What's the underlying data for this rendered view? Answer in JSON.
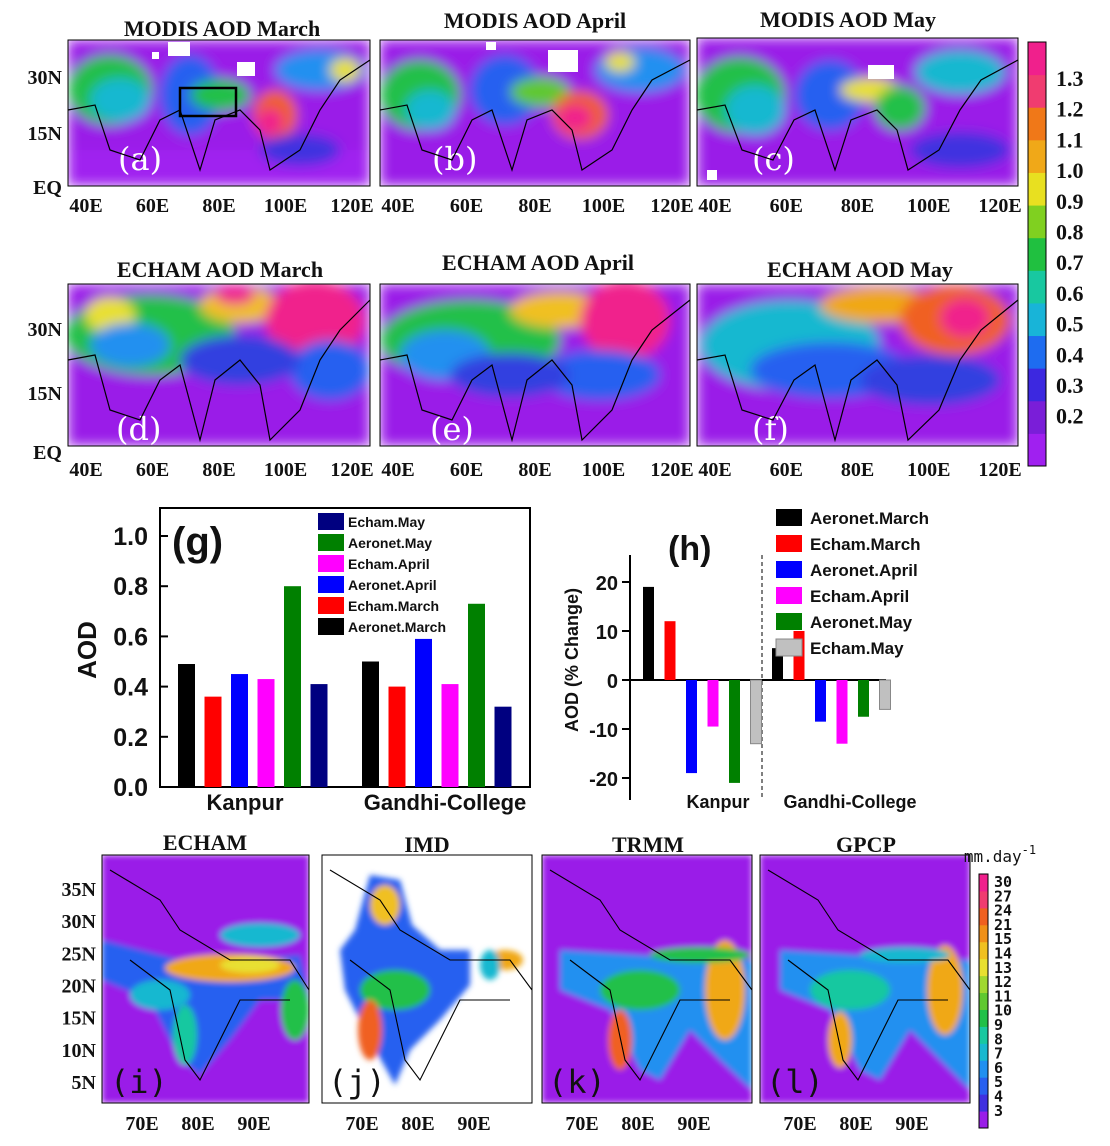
{
  "colors": {
    "aod_scale": [
      "#a020f0",
      "#7a1ed8",
      "#3c28e0",
      "#1e6cf0",
      "#18b4d8",
      "#18c8a0",
      "#20c040",
      "#80d020",
      "#e8e020",
      "#f0a818",
      "#f07818",
      "#f03c70",
      "#f0208c"
    ],
    "precip_scale": [
      "#9a1ee8",
      "#4030e0",
      "#2860f0",
      "#2090f0",
      "#18b8d0",
      "#18c8a0",
      "#20c048",
      "#60c830",
      "#a0d830",
      "#e8e030",
      "#f0c020",
      "#f09018",
      "#f06020",
      "#f03c70",
      "#f0208c"
    ],
    "land": "#ffffff",
    "coast": "#000000"
  },
  "chart_data": [
    {
      "type": "heatmap",
      "panels": [
        {
          "id": "a",
          "title": "MODIS AOD March",
          "label": "(a)"
        },
        {
          "id": "b",
          "title": "MODIS AOD April",
          "label": "(b)"
        },
        {
          "id": "c",
          "title": "MODIS AOD May",
          "label": "(c)"
        },
        {
          "id": "d",
          "title": "ECHAM AOD March",
          "label": "(d)"
        },
        {
          "id": "e",
          "title": "ECHAM AOD April",
          "label": "(e)"
        },
        {
          "id": "f",
          "title": "ECHAM AOD May",
          "label": "(f)"
        }
      ],
      "x_ticks": [
        "40E",
        "60E",
        "80E",
        "100E",
        "120E"
      ],
      "y_ticks": [
        "30N",
        "15N",
        "EQ"
      ],
      "colorbar_ticks": [
        "1.3",
        "1.2",
        "1.1",
        "1.0",
        "0.9",
        "0.8",
        "0.7",
        "0.6",
        "0.5",
        "0.4",
        "0.3",
        "0.2"
      ]
    },
    {
      "type": "bar",
      "panel_label": "(g)",
      "ylabel": "AOD",
      "ylim": [
        0.0,
        1.0
      ],
      "y_ticks": [
        "0.0",
        "0.2",
        "0.4",
        "0.6",
        "0.8",
        "1.0"
      ],
      "categories": [
        "Kanpur",
        "Gandhi-College"
      ],
      "legend": [
        "Echam.May",
        "Aeronet.May",
        "Echam.April",
        "Aeronet.April",
        "Echam.March",
        "Aeronet.March"
      ],
      "series": [
        {
          "name": "Aeronet.March",
          "color": "#000000",
          "values": [
            0.49,
            0.5
          ]
        },
        {
          "name": "Echam.March",
          "color": "#ff0000",
          "values": [
            0.36,
            0.4
          ]
        },
        {
          "name": "Aeronet.April",
          "color": "#0000ff",
          "values": [
            0.45,
            0.59
          ]
        },
        {
          "name": "Echam.April",
          "color": "#ff00ff",
          "values": [
            0.43,
            0.41
          ]
        },
        {
          "name": "Aeronet.May",
          "color": "#008000",
          "values": [
            0.8,
            0.73
          ]
        },
        {
          "name": "Echam.May",
          "color": "#000080",
          "values": [
            0.41,
            0.32
          ]
        }
      ]
    },
    {
      "type": "bar",
      "panel_label": "(h)",
      "ylabel": "AOD (% Change)",
      "ylim": [
        -22,
        24
      ],
      "y_ticks": [
        "20",
        "10",
        "0",
        "-10",
        "-20"
      ],
      "categories": [
        "Kanpur",
        "Gandhi-College"
      ],
      "legend": [
        "Aeronet.March",
        "Echam.March",
        "Aeronet.April",
        "Echam.April",
        "Aeronet.May",
        "Echam.May"
      ],
      "series": [
        {
          "name": "Aeronet.March",
          "color": "#000000",
          "values": [
            19,
            6.5
          ]
        },
        {
          "name": "Echam.March",
          "color": "#ff0000",
          "values": [
            12,
            10
          ]
        },
        {
          "name": "Aeronet.April",
          "color": "#0000ff",
          "values": [
            -19,
            -8.5
          ]
        },
        {
          "name": "Echam.April",
          "color": "#ff00ff",
          "values": [
            -9.5,
            -13
          ]
        },
        {
          "name": "Aeronet.May",
          "color": "#008000",
          "values": [
            -21,
            -7.5
          ]
        },
        {
          "name": "Echam.May",
          "color": "#c0c0c0",
          "values": [
            -13,
            -6
          ]
        }
      ]
    },
    {
      "type": "heatmap",
      "panels": [
        {
          "id": "i",
          "title": "ECHAM",
          "label": "(i)"
        },
        {
          "id": "j",
          "title": "IMD",
          "label": "(j)"
        },
        {
          "id": "k",
          "title": "TRMM",
          "label": "(k)"
        },
        {
          "id": "l",
          "title": "GPCP",
          "label": "(l)"
        }
      ],
      "x_ticks": [
        "70E",
        "80E",
        "90E"
      ],
      "y_ticks": [
        "35N",
        "30N",
        "25N",
        "20N",
        "15N",
        "10N",
        "5N"
      ],
      "colorbar_unit": "mm.day",
      "colorbar_unit_exp": "-1",
      "colorbar_ticks": [
        "30",
        "27",
        "24",
        "21",
        "15",
        "14",
        "13",
        "12",
        "11",
        "10",
        "9",
        "8",
        "7",
        "6",
        "5",
        "4",
        "3"
      ]
    }
  ]
}
